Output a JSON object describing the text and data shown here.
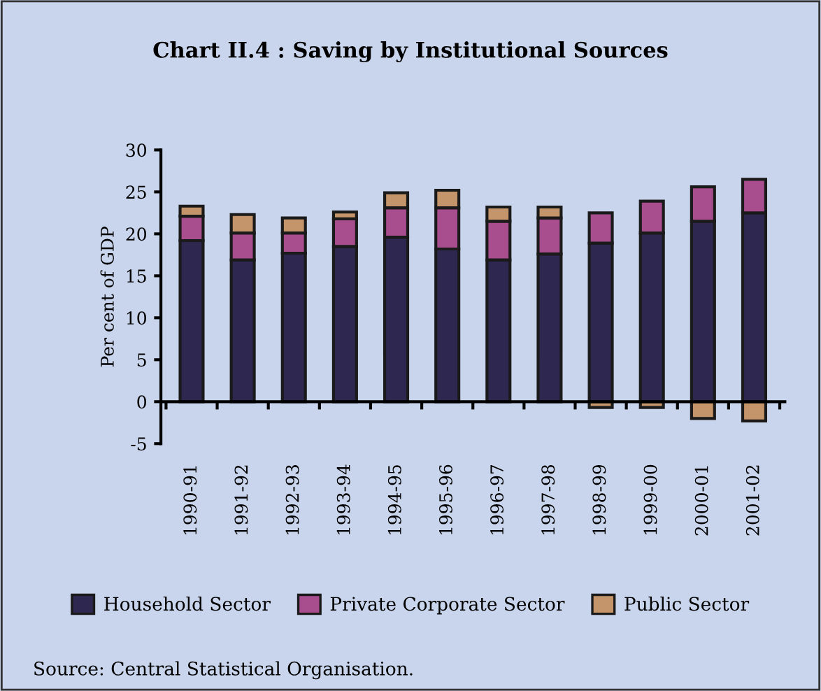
{
  "chart_data": {
    "type": "bar",
    "stacked": true,
    "title": "Chart II.4 : Saving by Institutional Sources",
    "ylabel": "Per cent of GDP",
    "categories": [
      "1990-91",
      "1991-92",
      "1992-93",
      "1993-94",
      "1994-95",
      "1995-96",
      "1996-97",
      "1997-98",
      "1998-99",
      "1999-00",
      "2000-01",
      "2001-02"
    ],
    "series": [
      {
        "name": "Household Sector",
        "color": "#2e2850",
        "values": [
          19.2,
          16.9,
          17.7,
          18.5,
          19.6,
          18.2,
          16.9,
          17.6,
          18.9,
          20.1,
          21.5,
          22.5
        ]
      },
      {
        "name": "Private Corporate Sector",
        "color": "#a84d8e",
        "values": [
          2.9,
          3.2,
          2.4,
          3.3,
          3.5,
          4.9,
          4.6,
          4.3,
          3.6,
          3.8,
          4.1,
          4.0
        ]
      },
      {
        "name": "Public Sector",
        "color": "#c4956a",
        "values": [
          1.2,
          2.2,
          1.8,
          0.8,
          1.8,
          2.1,
          1.7,
          1.3,
          -0.7,
          -0.7,
          -2.0,
          -2.3
        ]
      }
    ],
    "ylim": [
      -5,
      30
    ],
    "yticks": [
      -5,
      0,
      5,
      10,
      15,
      20,
      25,
      30
    ],
    "legend": "bottom",
    "annotations": [
      "Source: Central Statistical Organisation."
    ]
  }
}
